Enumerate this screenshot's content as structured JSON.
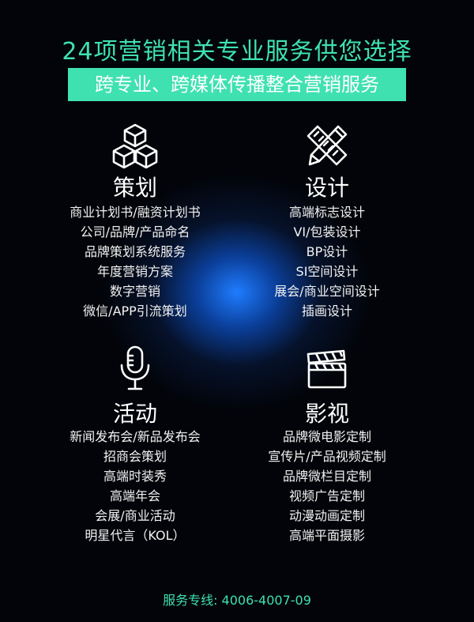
{
  "header": {
    "title": "24项营销相关专业服务供您选择",
    "banner": "跨专业、跨媒体传播整合营销服务"
  },
  "sections": [
    {
      "title": "策划",
      "icon": "cubes-icon",
      "items": [
        "商业计划书/融资计划书",
        "公司/品牌/产品命名",
        "品牌策划系统服务",
        "年度营销方案",
        "数字营销",
        "微信/APP引流策划"
      ]
    },
    {
      "title": "设计",
      "icon": "pencil-ruler-icon",
      "items": [
        "高端标志设计",
        "VI/包装设计",
        "BP设计",
        "SI空间设计",
        "展会/商业空间设计",
        "插画设计"
      ]
    },
    {
      "title": "活动",
      "icon": "microphone-icon",
      "items": [
        "新闻发布会/新品发布会",
        "招商会策划",
        "高端时装秀",
        "高端年会",
        "会展/商业活动",
        "明星代言（KOL）"
      ]
    },
    {
      "title": "影视",
      "icon": "clapperboard-icon",
      "items": [
        "品牌微电影定制",
        "宣传片/产品视频定制",
        "品牌微栏目定制",
        "视频广告定制",
        "动漫动画定制",
        "高端平面摄影"
      ]
    }
  ],
  "footer": {
    "hotline": "服务专线: 4006-4007-09"
  },
  "colors": {
    "accent": "#3fe1b0",
    "background": "#020409",
    "glow": "#1f7cff"
  }
}
